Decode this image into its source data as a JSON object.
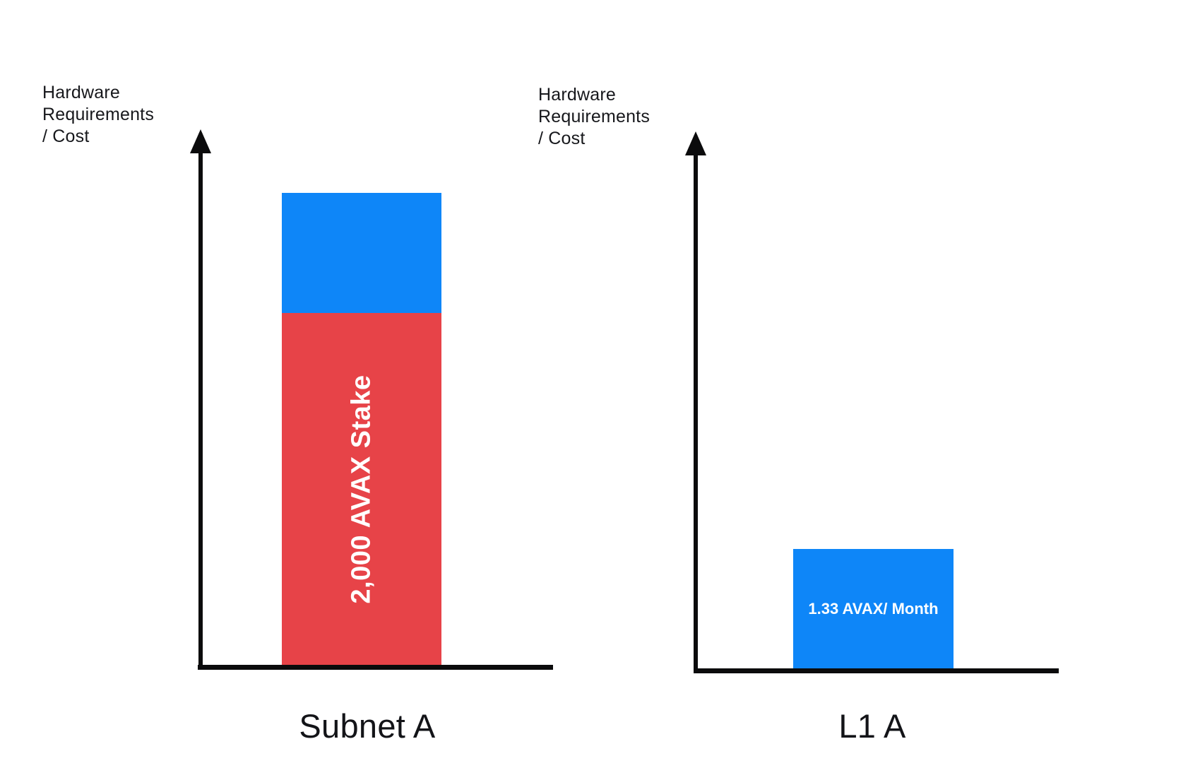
{
  "chart_data": [
    {
      "type": "bar",
      "stacked": true,
      "title": "Subnet A",
      "ylabel": "Hardware\nRequirements\n/ Cost",
      "xlabel": "",
      "categories": [
        "Subnet A"
      ],
      "series": [
        {
          "name": "Hardware Requirements / Cost",
          "color": "#0E86F8",
          "values": [
            170
          ]
        },
        {
          "name": "2,000 AVAX Stake",
          "color": "#E74348",
          "values": [
            498
          ]
        }
      ],
      "bar_label": "2,000 AVAX Stake",
      "axis_color": "#0B0B0C",
      "gridlines": false,
      "ticks": false,
      "units": "relative height (px)"
    },
    {
      "type": "bar",
      "stacked": false,
      "title": "L1 A",
      "ylabel": "Hardware\nRequirements\n/ Cost",
      "xlabel": "",
      "categories": [
        "L1 A"
      ],
      "series": [
        {
          "name": "1.33 AVAX/ Month",
          "color": "#0E86F8",
          "values": [
            169
          ]
        }
      ],
      "bar_label": "1.33 AVAX/ Month",
      "axis_color": "#0B0B0C",
      "gridlines": false,
      "ticks": false,
      "units": "relative height (px)"
    }
  ],
  "colors": {
    "blue": "#0E86F8",
    "red": "#E74348",
    "axis": "#0B0B0C",
    "text": "#17181C",
    "bar_label_text": "#FFFFFF",
    "background": "#FFFFFF"
  }
}
